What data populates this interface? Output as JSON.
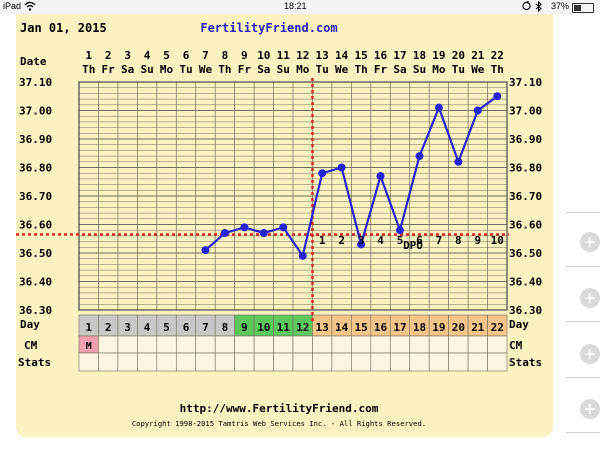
{
  "status_bar": {
    "device": "iPad",
    "time": "18:21",
    "battery": "37%",
    "battery_level": 0.37
  },
  "chart_header": {
    "date": "Jan 01, 2015",
    "site": "FertilityFriend.com"
  },
  "row_labels": {
    "date": "Date",
    "day": "Day",
    "cm": "CM",
    "stats": "Stats",
    "dpo": "DPO"
  },
  "footer": {
    "url": "http://www.FertilityFriend.com",
    "copyright": "Copyright 1998-2015 Tamtris Web Services Inc. - All Rights Reserved."
  },
  "colors": {
    "background": "#fbf1c1",
    "grid": "#6e6e5a",
    "temperature_line": "#2525d6",
    "coverline": "#dd1f1f",
    "day_gray": "#c8c8c8",
    "day_green": "#5ec85e",
    "day_orange": "#f4c488",
    "cm_menstrual": "#f2a0b0",
    "title_blue": "#2424c8"
  },
  "chart_data": {
    "type": "line",
    "title": "FertilityFriend.com",
    "x": [
      1,
      2,
      3,
      4,
      5,
      6,
      7,
      8,
      9,
      10,
      11,
      12,
      13,
      14,
      15,
      16,
      17,
      18,
      19,
      20,
      21,
      22
    ],
    "dates": [
      "1",
      "2",
      "3",
      "4",
      "5",
      "6",
      "7",
      "8",
      "9",
      "10",
      "11",
      "12",
      "13",
      "14",
      "15",
      "16",
      "17",
      "18",
      "19",
      "20",
      "21",
      "22"
    ],
    "weekdays": [
      "Th",
      "Fr",
      "Sa",
      "Su",
      "Mo",
      "Tu",
      "We",
      "Th",
      "Fr",
      "Sa",
      "Su",
      "Mo",
      "Tu",
      "We",
      "Th",
      "Fr",
      "Sa",
      "Su",
      "Mo",
      "Tu",
      "We",
      "Th"
    ],
    "cycle_days": [
      "1",
      "2",
      "3",
      "4",
      "5",
      "6",
      "7",
      "8",
      "9",
      "10",
      "11",
      "12",
      "13",
      "14",
      "15",
      "16",
      "17",
      "18",
      "19",
      "20",
      "21",
      "22"
    ],
    "day_colors": [
      "gray",
      "gray",
      "gray",
      "gray",
      "gray",
      "gray",
      "gray",
      "gray",
      "green",
      "green",
      "green",
      "green",
      "orange",
      "orange",
      "orange",
      "orange",
      "orange",
      "orange",
      "orange",
      "orange",
      "orange",
      "orange"
    ],
    "cm": [
      "M",
      "",
      "",
      "",
      "",
      "",
      "",
      "",
      "",
      "",
      "",
      "",
      "",
      "",
      "",
      "",
      "",
      "",
      "",
      "",
      "",
      ""
    ],
    "series": [
      {
        "values": [
          null,
          null,
          null,
          null,
          null,
          null,
          36.51,
          36.57,
          36.59,
          36.57,
          36.59,
          36.49,
          36.78,
          36.8,
          36.53,
          36.77,
          36.58,
          36.84,
          37.01,
          36.82,
          37.0,
          37.05
        ]
      }
    ],
    "y_ticks": [
      "37.10",
      "37.00",
      "36.90",
      "36.80",
      "36.70",
      "36.60",
      "36.50",
      "36.40",
      "36.30"
    ],
    "ylim": [
      36.3,
      37.1
    ],
    "coverline": 36.565,
    "ovulation_day": 12,
    "dpo_labels": [
      "1",
      "2",
      "3",
      "4",
      "5",
      "6",
      "7",
      "8",
      "9",
      "10"
    ],
    "dpo_start_day": 13,
    "grid": true
  }
}
